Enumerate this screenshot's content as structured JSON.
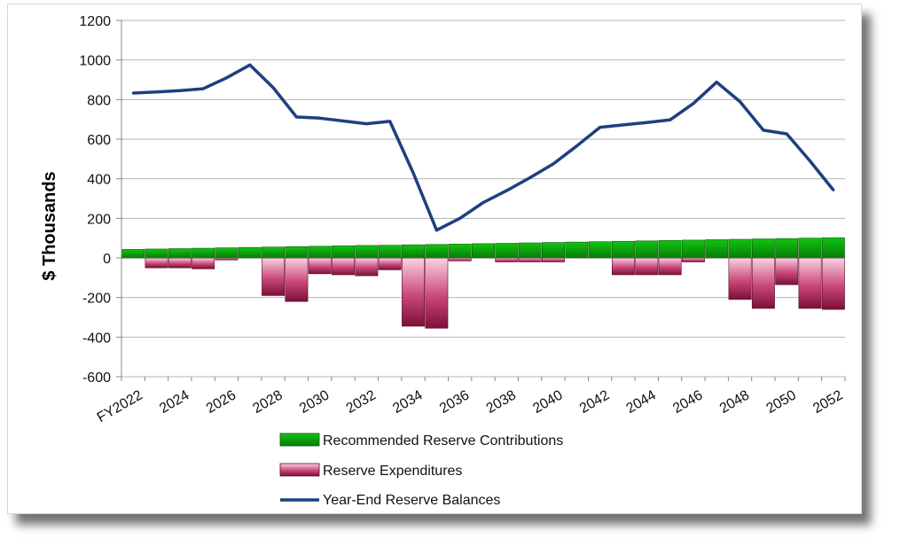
{
  "chart_data": {
    "type": "bar",
    "ylabel": "$ Thousands",
    "ylim": [
      -600,
      1200
    ],
    "yticks": [
      "1200",
      "1000",
      "800",
      "600",
      "400",
      "200",
      "0",
      "-200",
      "-400",
      "-600"
    ],
    "x_tick_labels": [
      "FY2022",
      "2024",
      "2026",
      "2028",
      "2030",
      "2032",
      "2034",
      "2036",
      "2038",
      "2040",
      "2042",
      "2044",
      "2046",
      "2048",
      "2050",
      "2052"
    ],
    "years": [
      2022,
      2023,
      2024,
      2025,
      2026,
      2027,
      2028,
      2029,
      2030,
      2031,
      2032,
      2033,
      2034,
      2035,
      2036,
      2037,
      2038,
      2039,
      2040,
      2041,
      2042,
      2043,
      2044,
      2045,
      2046,
      2047,
      2048,
      2049,
      2050,
      2051,
      2052
    ],
    "grid": "horizontal",
    "legend_position": "bottom",
    "series": [
      {
        "name": "Recommended Reserve Contributions",
        "type": "bar",
        "color": "#0a9a0a",
        "values": [
          43,
          45,
          47,
          49,
          51,
          53,
          55,
          57,
          59,
          61,
          63,
          64,
          66,
          68,
          70,
          72,
          74,
          76,
          78,
          80,
          82,
          84,
          86,
          88,
          90,
          92,
          94,
          96,
          98,
          100,
          102
        ]
      },
      {
        "name": "Reserve Expenditures",
        "type": "bar",
        "color": "#b0285a",
        "values": [
          0,
          -50,
          -50,
          -55,
          -10,
          0,
          -190,
          -220,
          -80,
          -85,
          -90,
          -60,
          -345,
          -355,
          -15,
          0,
          -20,
          -20,
          -20,
          0,
          0,
          -85,
          -85,
          -85,
          -20,
          0,
          -210,
          -255,
          -135,
          -255,
          -260
        ]
      },
      {
        "name": "Year-End Reserve Balances",
        "type": "line",
        "color": "#1f3f7f",
        "values": [
          833,
          838,
          845,
          855,
          910,
          975,
          860,
          712,
          706,
          692,
          678,
          690,
          430,
          140,
          200,
          280,
          340,
          405,
          475,
          565,
          660,
          672,
          684,
          697,
          780,
          888,
          790,
          645,
          627,
          490,
          343
        ]
      }
    ]
  }
}
